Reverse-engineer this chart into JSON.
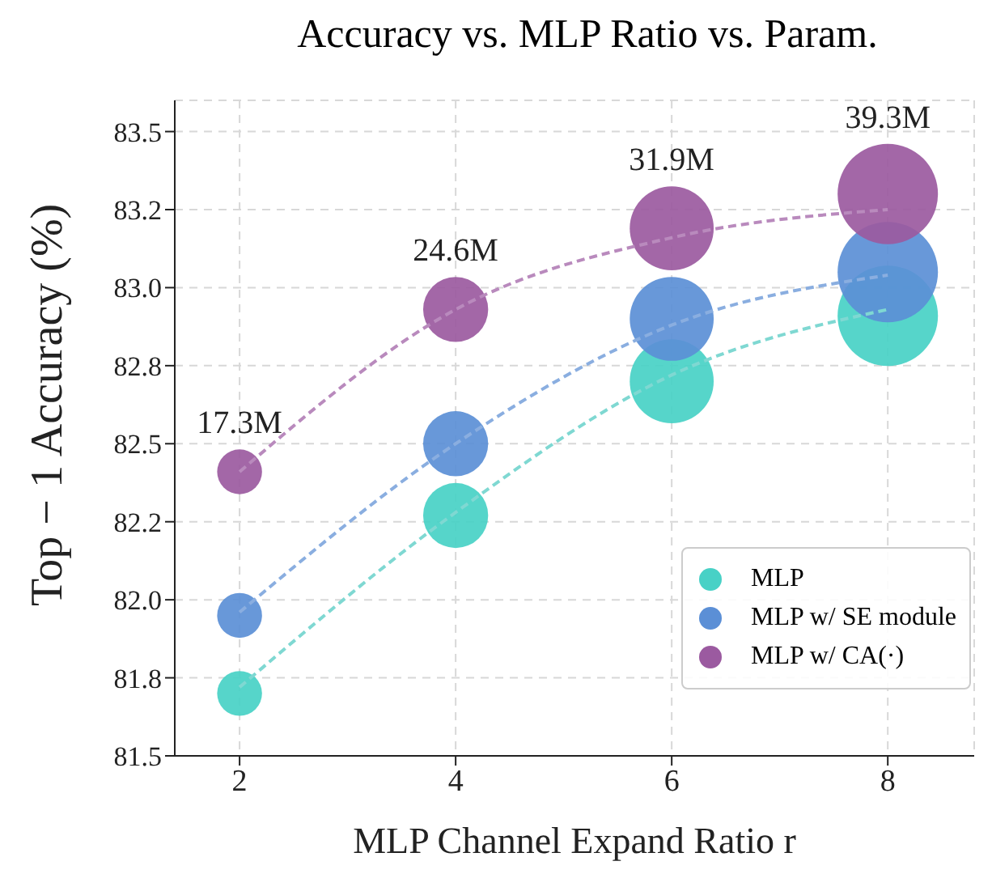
{
  "chart_data": {
    "type": "bubble",
    "title": "Accuracy vs. MLP Ratio vs. Param.",
    "xlabel": "MLP Channel Expand Ratio r",
    "ylabel": "Top − 1 Accuracy (%)",
    "x": [
      2,
      4,
      6,
      8
    ],
    "series": [
      {
        "name": "MLP",
        "color": "#48d1c6",
        "values": [
          81.7,
          82.27,
          82.7,
          82.91
        ],
        "sizes": [
          0.2,
          0.42,
          0.7,
          1
        ]
      },
      {
        "name": "MLP w/ SE module",
        "color": "#5b8fd6",
        "values": [
          81.95,
          82.5,
          82.9,
          83.05
        ],
        "sizes": [
          0.2,
          0.42,
          0.7,
          1
        ]
      },
      {
        "name": "MLP w/ CA(·)",
        "color": "#9b5aa0",
        "values": [
          82.41,
          82.93,
          83.19,
          83.3
        ],
        "sizes": [
          0.2,
          0.42,
          0.7,
          1
        ]
      },
      {
        "type": "line",
        "marker": "none",
        "color": "#7fd8d2",
        "values": [
          81.72,
          82.28,
          82.72,
          82.93
        ]
      },
      {
        "type": "line",
        "marker": "none",
        "color": "#8aaee0",
        "values": [
          81.96,
          82.5,
          82.88,
          83.04
        ]
      },
      {
        "type": "line",
        "marker": "none",
        "color": "#b98abd",
        "values": [
          82.41,
          82.93,
          83.16,
          83.25
        ]
      }
    ],
    "annotations": [
      "17.3M",
      "24.6M",
      "31.9M",
      "39.3M"
    ],
    "xlim": [
      1.4,
      8.8
    ],
    "xticks": [
      2,
      4,
      6,
      8
    ],
    "ylim": [
      81.5,
      83.6
    ],
    "yticks": [
      {
        "value": 81.5,
        "label": "81.5"
      },
      {
        "value": 81.75,
        "label": "81.8"
      },
      {
        "value": 82,
        "label": "82.0"
      },
      {
        "value": 82.25,
        "label": "82.2"
      },
      {
        "value": 82.5,
        "label": "82.5"
      },
      {
        "value": 82.75,
        "label": "82.8"
      },
      {
        "value": 83,
        "label": "83.0"
      },
      {
        "value": 83.25,
        "label": "83.2"
      },
      {
        "value": 83.5,
        "label": "83.5"
      }
    ],
    "grid": true,
    "legend": "bottom right",
    "marker": "circle",
    "line_style": "dashed"
  }
}
